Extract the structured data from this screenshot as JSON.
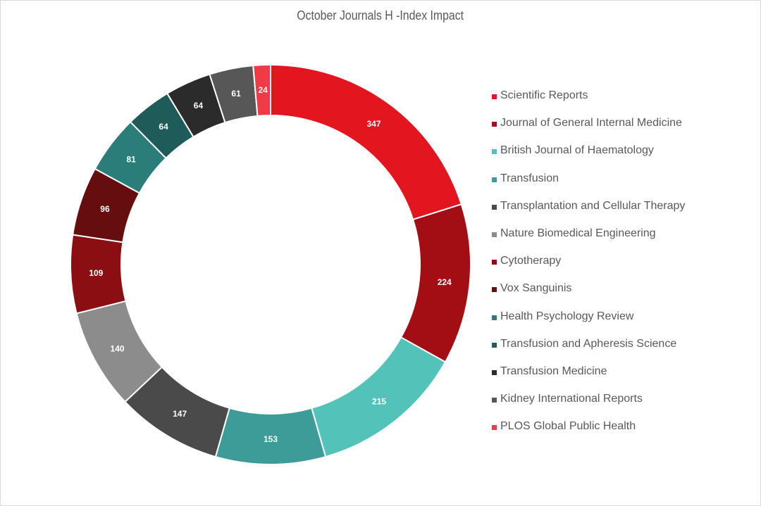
{
  "chart_data": {
    "type": "pie",
    "variant": "doughnut",
    "title": "October Journals H  -Index Impact",
    "legend_position": "right",
    "categories": [
      "Scientific Reports",
      "Journal of General Internal Medicine",
      "British Journal of Haematology",
      "Transfusion",
      "Transplantation and Cellular Therapy",
      "Nature Biomedical Engineering",
      "Cytotherapy",
      "Vox Sanguinis",
      "Health Psychology Review",
      "Transfusion and Apheresis Science",
      "Transfusion Medicine",
      "Kidney International Reports",
      "PLOS Global Public Health"
    ],
    "values": [
      347,
      224,
      215,
      153,
      147,
      140,
      109,
      96,
      81,
      64,
      64,
      61,
      24
    ],
    "colors": [
      "#e3161f",
      "#a30d14",
      "#53c3b9",
      "#3d9c97",
      "#4a4a4a",
      "#8c8c8c",
      "#8b0e13",
      "#660d10",
      "#2a7d79",
      "#1f5c59",
      "#2b2b2b",
      "#575757",
      "#ef3b45"
    ]
  }
}
